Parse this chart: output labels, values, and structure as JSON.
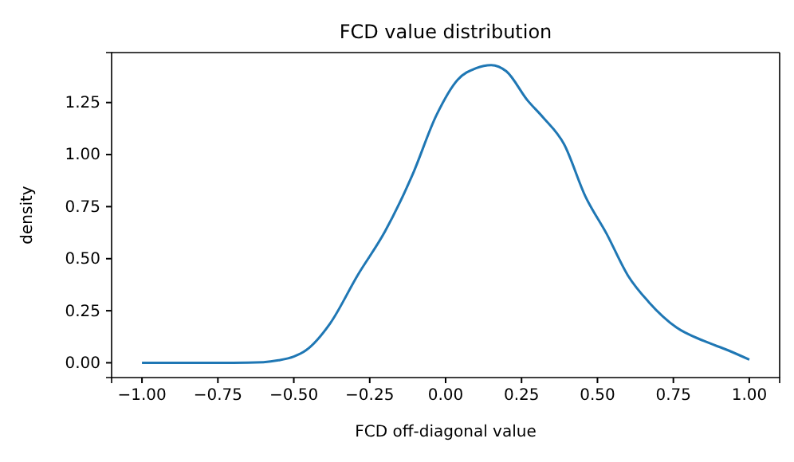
{
  "chart_data": {
    "type": "line",
    "title": "FCD value distribution",
    "xlabel": "FCD off-diagonal value",
    "ylabel": "density",
    "x": [
      -1.0,
      -0.9,
      -0.8,
      -0.7,
      -0.6,
      -0.55,
      -0.5,
      -0.46,
      -0.38,
      -0.29,
      -0.2,
      -0.11,
      -0.03,
      0.04,
      0.1,
      0.15,
      0.2,
      0.27,
      0.32,
      0.39,
      0.46,
      0.53,
      0.6,
      0.67,
      0.76,
      0.85,
      0.93,
      1.0
    ],
    "series": [
      {
        "color": "#1f77b4",
        "values": [
          0,
          0,
          0,
          0,
          0.003,
          0.012,
          0.03,
          0.06,
          0.19,
          0.42,
          0.63,
          0.9,
          1.19,
          1.36,
          1.415,
          1.43,
          1.4,
          1.26,
          1.18,
          1.05,
          0.8,
          0.62,
          0.42,
          0.29,
          0.17,
          0.105,
          0.06,
          0.015
        ]
      }
    ],
    "xlim": [
      -1.1,
      1.1
    ],
    "xticks": [
      {
        "value": -1,
        "label": "−1.00"
      },
      {
        "value": -0.75,
        "label": "−0.75"
      },
      {
        "value": -0.5,
        "label": "−0.50"
      },
      {
        "value": -0.25,
        "label": "−0.25"
      },
      {
        "value": 0,
        "label": "0.00"
      },
      {
        "value": 0.25,
        "label": "0.25"
      },
      {
        "value": 0.5,
        "label": "0.50"
      },
      {
        "value": 0.75,
        "label": "0.75"
      },
      {
        "value": 1,
        "label": "1.00"
      }
    ],
    "ylim": [
      -0.071,
      1.49
    ],
    "yticks": [
      {
        "value": 0,
        "label": "0.00"
      },
      {
        "value": 0.25,
        "label": "0.25"
      },
      {
        "value": 0.5,
        "label": "0.50"
      },
      {
        "value": 0.75,
        "label": "0.75"
      },
      {
        "value": 1,
        "label": "1.00"
      },
      {
        "value": 1.25,
        "label": "1.25"
      }
    ],
    "grid": false
  }
}
